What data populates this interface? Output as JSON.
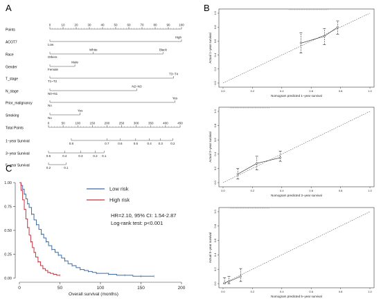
{
  "panels": {
    "a": "A",
    "b": "B",
    "c": "C"
  },
  "nomogram": {
    "rows": [
      {
        "label": "Points",
        "kind": "scale",
        "range": [
          0,
          100
        ],
        "ticks": [
          0,
          10,
          20,
          30,
          40,
          50,
          60,
          70,
          80,
          90,
          100
        ],
        "labels": [
          "0",
          "10",
          "20",
          "30",
          "40",
          "50",
          "60",
          "70",
          "80",
          "90",
          "100"
        ]
      },
      {
        "label": "ACOT7",
        "kind": "var",
        "levels": [
          {
            "text": "Low",
            "pts": 0
          },
          {
            "text": "High",
            "pts": 100
          }
        ]
      },
      {
        "label": "Race",
        "kind": "var",
        "levels": [
          {
            "text": "Others",
            "pts": 0
          },
          {
            "text": "White",
            "pts": 33
          },
          {
            "text": "Black",
            "pts": 86
          }
        ]
      },
      {
        "label": "Gender",
        "kind": "var",
        "levels": [
          {
            "text": "Female",
            "pts": 0
          },
          {
            "text": "Male",
            "pts": 19
          }
        ]
      },
      {
        "label": "T_stage",
        "kind": "var",
        "levels": [
          {
            "text": "T1~T2",
            "pts": 0
          },
          {
            "text": "T3~T4",
            "pts": 94
          }
        ]
      },
      {
        "label": "N_stage",
        "kind": "var",
        "levels": [
          {
            "text": "N0~N1",
            "pts": 0
          },
          {
            "text": "N2~N3",
            "pts": 66
          }
        ]
      },
      {
        "label": "Prior_malignancy",
        "kind": "var",
        "levels": [
          {
            "text": "No",
            "pts": 0
          },
          {
            "text": "Yes",
            "pts": 95
          }
        ]
      },
      {
        "label": "Smoking",
        "kind": "var",
        "levels": [
          {
            "text": "No",
            "pts": 0
          },
          {
            "text": "Yes",
            "pts": 23
          }
        ]
      },
      {
        "label": "Total Points",
        "kind": "scale",
        "range": [
          0,
          450
        ],
        "ticks": [
          0,
          50,
          100,
          150,
          200,
          250,
          300,
          350,
          400,
          450
        ],
        "labels": [
          "0",
          "50",
          "100",
          "150",
          "200",
          "250",
          "300",
          "350",
          "400",
          "450"
        ]
      },
      {
        "label": "1−year Survival",
        "kind": "prob",
        "ticks": [
          78,
          200,
          245,
          298,
          345,
          383,
          425
        ],
        "labels": [
          "0.8",
          "0.7",
          "0.6",
          "0.5",
          "0.4",
          "0.3",
          "0.2"
        ]
      },
      {
        "label": "3−year Survival",
        "kind": "prob",
        "ticks": [
          0,
          55,
          110,
          160,
          190
        ],
        "labels": [
          "0.5",
          "0.4",
          "0.3",
          "0.2",
          "0.1"
        ]
      },
      {
        "label": "5−year Survival",
        "kind": "prob",
        "ticks": [
          0,
          60
        ],
        "labels": [
          "0.2",
          "0.1"
        ]
      }
    ]
  },
  "chart_data": [
    {
      "type": "scatter",
      "panel": "B",
      "xlabel": "Nomogram predicted 1−year survival",
      "ylabel": "Actual 1−year survival",
      "xlim": [
        0,
        1
      ],
      "ylim": [
        0,
        1
      ],
      "xticks": [
        0.0,
        0.2,
        0.4,
        0.6,
        0.8,
        1.0
      ],
      "yticks": [
        0.0,
        0.2,
        0.4,
        0.6,
        0.8,
        1.0
      ],
      "xticklabels": [
        "0.0",
        "0.2",
        "0.4",
        "0.6",
        "0.8",
        "1.0"
      ],
      "yticklabels": [
        "0.0",
        "0.2",
        "0.4",
        "0.6",
        "0.8",
        "1.0"
      ],
      "points": [
        {
          "x": 0.53,
          "y": 0.57,
          "lo": 0.43,
          "hi": 0.72
        },
        {
          "x": 0.69,
          "y": 0.67,
          "lo": 0.55,
          "hi": 0.78
        },
        {
          "x": 0.78,
          "y": 0.8,
          "lo": 0.7,
          "hi": 0.89
        }
      ]
    },
    {
      "type": "scatter",
      "panel": "B",
      "xlabel": "Nomogram predicted 3−year survival",
      "ylabel": "Actual 3−year survival",
      "xlim": [
        0,
        1
      ],
      "ylim": [
        0,
        1
      ],
      "xticks": [
        0.0,
        0.2,
        0.4,
        0.6,
        0.8,
        1.0
      ],
      "yticks": [
        0.0,
        0.2,
        0.4,
        0.6,
        0.8,
        1.0
      ],
      "xticklabels": [
        "0.0",
        "0.2",
        "0.4",
        "0.6",
        "0.8",
        "1.0"
      ],
      "yticklabels": [
        "0.0",
        "0.2",
        "0.4",
        "0.6",
        "0.8",
        "1.0"
      ],
      "points": [
        {
          "x": 0.1,
          "y": 0.12,
          "lo": 0.05,
          "hi": 0.2
        },
        {
          "x": 0.23,
          "y": 0.27,
          "lo": 0.18,
          "hi": 0.37
        },
        {
          "x": 0.39,
          "y": 0.35,
          "lo": 0.3,
          "hi": 0.44
        }
      ]
    },
    {
      "type": "scatter",
      "panel": "B",
      "xlabel": "Nomogram predicted 5−year survival",
      "ylabel": "Actual 5−year survival",
      "xlim": [
        0,
        1
      ],
      "ylim": [
        0,
        1
      ],
      "xticks": [
        0.0,
        0.2,
        0.4,
        0.6,
        0.8,
        1.0
      ],
      "yticks": [
        0.0,
        0.2,
        0.4,
        0.6,
        0.8,
        1.0
      ],
      "xticklabels": [
        "0.0",
        "0.2",
        "0.4",
        "0.6",
        "0.8",
        "1.0"
      ],
      "yticklabels": [
        "0.0",
        "0.2",
        "0.4",
        "0.6",
        "0.8",
        "1.0"
      ],
      "points": [
        {
          "x": 0.01,
          "y": 0.01,
          "lo": 0.0,
          "hi": 0.08
        },
        {
          "x": 0.04,
          "y": 0.03,
          "lo": 0.0,
          "hi": 0.1
        },
        {
          "x": 0.12,
          "y": 0.1,
          "lo": 0.03,
          "hi": 0.21
        }
      ]
    },
    {
      "type": "line",
      "panel": "C",
      "xlabel": "Overall survival (months)",
      "ylabel": "",
      "xlim": [
        0,
        200
      ],
      "ylim": [
        0,
        1
      ],
      "xticks": [
        0,
        50,
        100,
        150,
        200
      ],
      "yticks": [
        0.0,
        0.25,
        0.5,
        0.75,
        1.0
      ],
      "xticklabels": [
        "0",
        "50",
        "100",
        "150",
        "200"
      ],
      "yticklabels": [
        "0.00",
        "0.25",
        "0.50",
        "0.75",
        "1.00"
      ],
      "legend_position": "top-right",
      "annotations": [
        "HR=2.10, 95% CI: 1.54-2.87",
        "Log-rank test: p<0.001"
      ],
      "series": [
        {
          "name": "Low risk",
          "color": "#3a6aa5",
          "x": [
            0,
            2,
            4,
            6,
            8,
            10,
            12,
            15,
            18,
            21,
            24,
            27,
            30,
            33,
            36,
            40,
            44,
            48,
            52,
            56,
            60,
            65,
            70,
            75,
            80,
            85,
            90,
            95,
            100,
            110,
            120,
            130,
            140,
            150,
            160,
            166
          ],
          "y": [
            1.0,
            0.97,
            0.93,
            0.88,
            0.83,
            0.78,
            0.74,
            0.67,
            0.61,
            0.56,
            0.51,
            0.46,
            0.42,
            0.38,
            0.34,
            0.3,
            0.27,
            0.24,
            0.21,
            0.18,
            0.15,
            0.13,
            0.11,
            0.09,
            0.08,
            0.07,
            0.06,
            0.05,
            0.05,
            0.04,
            0.03,
            0.03,
            0.02,
            0.02,
            0.02,
            0.02
          ]
        },
        {
          "name": "High risk",
          "color": "#c5303a",
          "x": [
            0,
            2,
            4,
            6,
            8,
            10,
            12,
            14,
            16,
            18,
            20,
            23,
            26,
            29,
            32,
            35,
            38,
            42,
            46,
            50
          ],
          "y": [
            1.0,
            0.92,
            0.82,
            0.72,
            0.62,
            0.53,
            0.45,
            0.38,
            0.32,
            0.27,
            0.22,
            0.17,
            0.13,
            0.1,
            0.08,
            0.06,
            0.05,
            0.04,
            0.03,
            0.03
          ]
        }
      ]
    }
  ]
}
